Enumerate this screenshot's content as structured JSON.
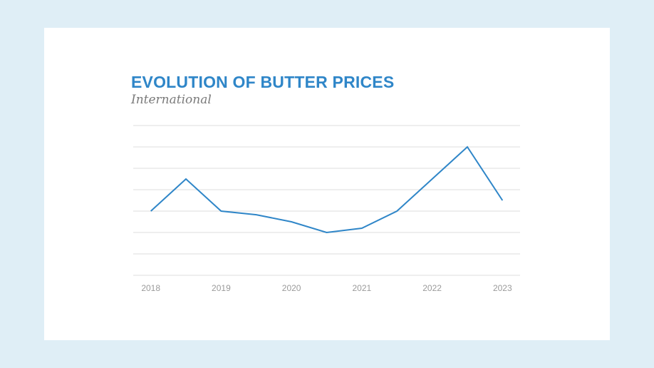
{
  "chart_data": {
    "type": "line",
    "title": "EVOLUTION OF BUTTER PRICES",
    "subtitle": "International",
    "xlabel": "",
    "ylabel": "",
    "x_tick_labels": [
      "2018",
      "2019",
      "2020",
      "2021",
      "2022",
      "2023"
    ],
    "x": [
      2018,
      2018.5,
      2019,
      2019.5,
      2020,
      2020.5,
      2021,
      2021.5,
      2022,
      2022.5,
      2023
    ],
    "series": [
      {
        "values": [
          3,
          4.5,
          3,
          2.83,
          2.5,
          2,
          2.2,
          3,
          4.5,
          6,
          3.5
        ]
      }
    ],
    "xlim": [
      2017.75,
      2023.25
    ],
    "ylim": [
      0,
      7
    ],
    "y_gridlines": [
      0,
      1,
      2,
      3,
      4,
      5,
      6,
      7
    ],
    "y_tick_labels_shown": false,
    "grid": true,
    "colors": {
      "line": "#2f86c8",
      "gridline": "#dcdcdc",
      "title": "#2f86c8",
      "subtitle": "#7a7a7a",
      "tick_label": "#9a9a9a",
      "card_background": "#ffffff",
      "page_background": "#dfeef6"
    }
  }
}
